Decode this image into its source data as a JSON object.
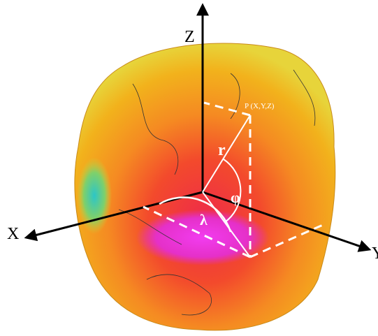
{
  "axes": {
    "z": "Z",
    "x": "X",
    "y": "Y"
  },
  "labels": {
    "point": "P (X,Y,Z)",
    "radius": "r",
    "latitude": "φ",
    "longitude": "λ"
  }
}
